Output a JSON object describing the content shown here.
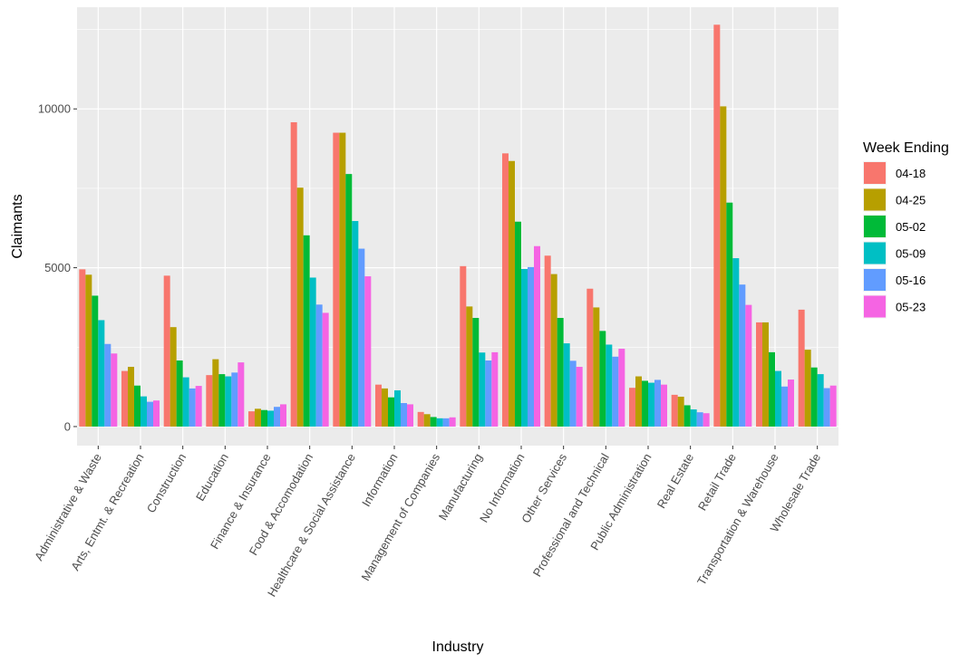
{
  "chart_data": {
    "type": "bar",
    "title": "",
    "xlabel": "Industry",
    "ylabel": "Claimants",
    "ylim": [
      -600,
      13200
    ],
    "yticks": [
      0,
      5000,
      10000
    ],
    "grid": true,
    "legend": {
      "title": "Week Ending",
      "position": "right"
    },
    "categories": [
      "Administrative & Waste",
      "Arts, Entmt. & Recreation",
      "Construction",
      "Education",
      "Finance & Insurance",
      "Food & Accomodation",
      "Healthcare & Social Assistance",
      "Information",
      "Management of Companies",
      "Manufacturing",
      "No Information",
      "Other Services",
      "Professional and Technical",
      "Public Administration",
      "Real Estate",
      "Retail Trade",
      "Transportation & Warehouse",
      "Wholesale Trade"
    ],
    "series": [
      {
        "name": "04-18",
        "color": "#F8766D",
        "values": [
          4950,
          1750,
          4750,
          1620,
          480,
          9580,
          9250,
          1320,
          460,
          5050,
          8600,
          5380,
          4340,
          1220,
          1000,
          12650,
          3280,
          3680
        ]
      },
      {
        "name": "04-25",
        "color": "#B79F00",
        "values": [
          4780,
          1880,
          3130,
          2120,
          560,
          7520,
          9250,
          1200,
          390,
          3780,
          8360,
          4800,
          3750,
          1580,
          940,
          10080,
          3280,
          2420
        ]
      },
      {
        "name": "05-02",
        "color": "#00BA38",
        "values": [
          4120,
          1290,
          2080,
          1650,
          520,
          6020,
          7950,
          920,
          300,
          3420,
          6450,
          3420,
          3010,
          1440,
          670,
          7050,
          2340,
          1860
        ]
      },
      {
        "name": "05-09",
        "color": "#00BFC4",
        "values": [
          3350,
          950,
          1550,
          1580,
          500,
          4690,
          6470,
          1140,
          260,
          2330,
          4960,
          2620,
          2580,
          1380,
          540,
          5300,
          1750,
          1650
        ]
      },
      {
        "name": "05-16",
        "color": "#619CFF",
        "values": [
          2600,
          780,
          1200,
          1700,
          620,
          3840,
          5600,
          740,
          260,
          2080,
          5020,
          2070,
          2200,
          1470,
          450,
          4470,
          1260,
          1210
        ]
      },
      {
        "name": "05-23",
        "color": "#F564E3",
        "values": [
          2300,
          820,
          1280,
          2020,
          700,
          3580,
          4730,
          700,
          290,
          2340,
          5680,
          1880,
          2450,
          1320,
          420,
          3830,
          1480,
          1290
        ]
      }
    ]
  }
}
